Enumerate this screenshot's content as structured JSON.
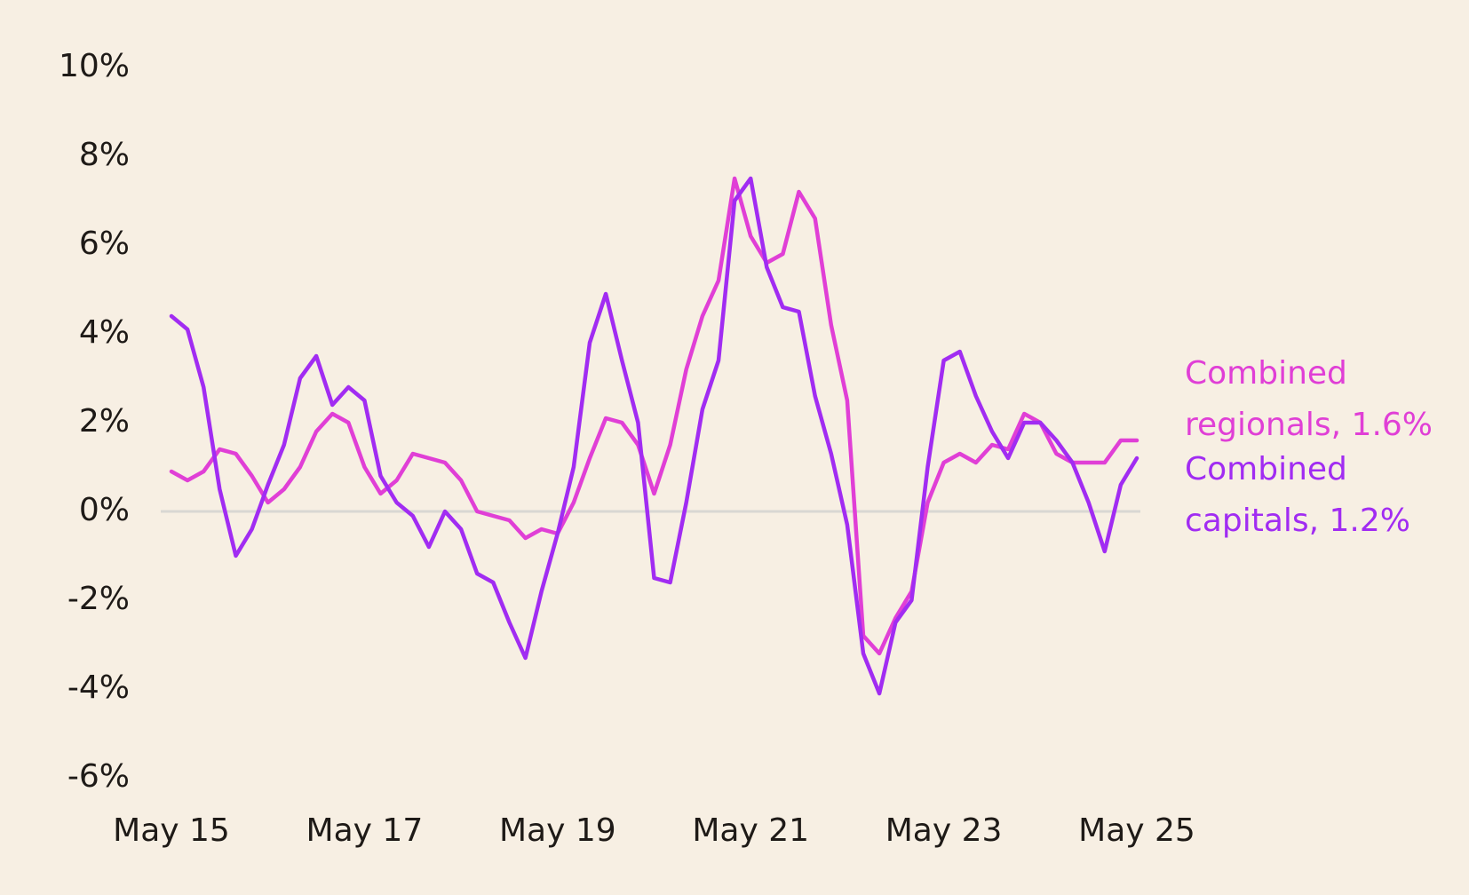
{
  "chart_data": {
    "type": "line",
    "categories": [
      "May 15",
      null,
      null,
      null,
      null,
      null,
      null,
      null,
      null,
      null,
      null,
      null,
      "May 17",
      null,
      null,
      null,
      null,
      null,
      null,
      null,
      null,
      null,
      null,
      null,
      "May 19",
      null,
      null,
      null,
      null,
      null,
      null,
      null,
      null,
      null,
      null,
      null,
      "May 21",
      null,
      null,
      null,
      null,
      null,
      null,
      null,
      null,
      null,
      null,
      null,
      "May 23",
      null,
      null,
      null,
      null,
      null,
      null,
      null,
      null,
      null,
      null,
      null,
      "May 25"
    ],
    "series": [
      {
        "name": "Combined regionals, 1.6%",
        "color": "#e03fd6",
        "values": [
          0.9,
          0.7,
          0.9,
          1.4,
          1.3,
          0.8,
          0.2,
          0.5,
          1.0,
          1.8,
          2.2,
          2.0,
          1.0,
          0.4,
          0.7,
          1.3,
          1.2,
          1.1,
          0.7,
          0.0,
          -0.1,
          -0.2,
          -0.6,
          -0.4,
          -0.5,
          0.2,
          1.2,
          2.1,
          2.0,
          1.5,
          0.4,
          1.5,
          3.2,
          4.4,
          5.2,
          7.5,
          6.2,
          5.6,
          5.8,
          7.2,
          6.6,
          4.2,
          2.5,
          -2.8,
          -3.2,
          -2.4,
          -1.8,
          0.2,
          1.1,
          1.3,
          1.1,
          1.5,
          1.4,
          2.2,
          2.0,
          1.3,
          1.1,
          1.1,
          1.1,
          1.6,
          1.6
        ]
      },
      {
        "name": "Combined capitals, 1.2%",
        "color": "#a12cf2",
        "values": [
          4.4,
          4.1,
          2.8,
          0.5,
          -1.0,
          -0.4,
          0.6,
          1.5,
          3.0,
          3.5,
          2.4,
          2.8,
          2.5,
          0.8,
          0.2,
          -0.1,
          -0.8,
          0.0,
          -0.4,
          -1.4,
          -1.6,
          -2.5,
          -3.3,
          -1.8,
          -0.5,
          1.0,
          3.8,
          4.9,
          3.4,
          2.0,
          -1.5,
          -1.6,
          0.2,
          2.3,
          3.4,
          7.0,
          7.5,
          5.5,
          4.6,
          4.5,
          2.6,
          1.3,
          -0.3,
          -3.2,
          -4.1,
          -2.5,
          -2.0,
          1.0,
          3.4,
          3.6,
          2.6,
          1.8,
          1.2,
          2.0,
          2.0,
          1.6,
          1.1,
          0.2,
          -0.9,
          0.6,
          1.2
        ]
      }
    ],
    "ylim": [
      -6,
      10
    ],
    "yticks": [
      {
        "value": -6,
        "label": "-6%"
      },
      {
        "value": -4,
        "label": "-4%"
      },
      {
        "value": -2,
        "label": "-2%"
      },
      {
        "value": 0,
        "label": "0%"
      },
      {
        "value": 2,
        "label": "2%"
      },
      {
        "value": 4,
        "label": "4%"
      },
      {
        "value": 6,
        "label": "6%"
      },
      {
        "value": 8,
        "label": "8%"
      },
      {
        "value": 10,
        "label": "10%"
      }
    ],
    "grid": false
  }
}
